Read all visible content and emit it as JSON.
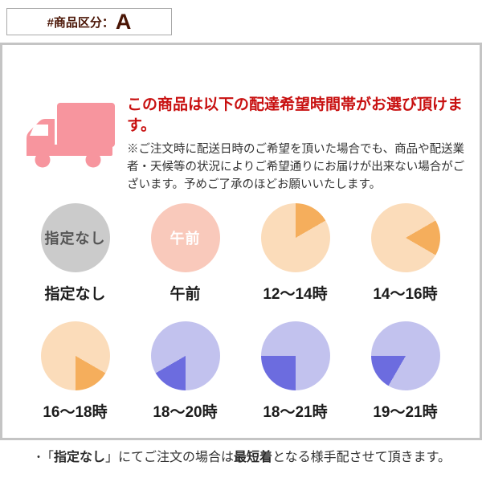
{
  "product_class_box": {
    "prefix": "#商品区分：",
    "value": "A"
  },
  "header": {
    "title": "この商品は以下の配達希望時間帯がお選び頂けます。",
    "note": "※ご注文時に配送日時のご希望を頂いた場合でも、商品や配送業者・天候等の状況によりご希望通りにお届けが出来ない場合がございます。予めご了承のほどお願いいたします。"
  },
  "icons": {
    "truck": "delivery-truck-icon",
    "pies": "clock-pie-icon"
  },
  "time_slots": [
    {
      "label": "指定なし",
      "inner_text": "指定なし",
      "bg": "#cbcbcb",
      "text_color": "#555555"
    },
    {
      "label": "午前",
      "inner_text": "午前",
      "bg": "#f9c9bb",
      "text_color": "#ffffff"
    },
    {
      "label": "12〜14時",
      "bg": "#fbdcba",
      "wedge": {
        "color": "#f5ae5c",
        "start": 0,
        "end": 60
      }
    },
    {
      "label": "14〜16時",
      "bg": "#fbdcba",
      "wedge": {
        "color": "#f5ae5c",
        "start": 60,
        "end": 120
      }
    },
    {
      "label": "16〜18時",
      "bg": "#fbdcba",
      "wedge": {
        "color": "#f5ae5c",
        "start": 120,
        "end": 180
      }
    },
    {
      "label": "18〜20時",
      "bg": "#c2c2ee",
      "wedge": {
        "color": "#6c6cdf",
        "start": 180,
        "end": 240
      }
    },
    {
      "label": "18〜21時",
      "bg": "#c2c2ee",
      "wedge": {
        "color": "#6c6cdf",
        "start": 180,
        "end": 270
      }
    },
    {
      "label": "19〜21時",
      "bg": "#c2c2ee",
      "wedge": {
        "color": "#6c6cdf",
        "start": 210,
        "end": 270
      }
    }
  ],
  "footer_note": {
    "bullet": "・",
    "segments": [
      {
        "text": "「",
        "bold": false
      },
      {
        "text": "指定なし",
        "bold": true
      },
      {
        "text": "」にてご注文の場合は",
        "bold": false
      },
      {
        "text": "最短着",
        "bold": true
      },
      {
        "text": "となる様手配させて頂きます。",
        "bold": false
      }
    ]
  },
  "colors": {
    "truck_pink": "#f7959e",
    "title_red": "#c81010",
    "box_text_brown": "#4a1505",
    "panel_border": "#c4c4c4",
    "gray_circle": "#cbcbcb",
    "morning_circle": "#f9c9bb",
    "orange_light": "#fbdcba",
    "orange_dark": "#f5ae5c",
    "purple_light": "#c2c2ee",
    "purple_dark": "#6c6cdf"
  }
}
